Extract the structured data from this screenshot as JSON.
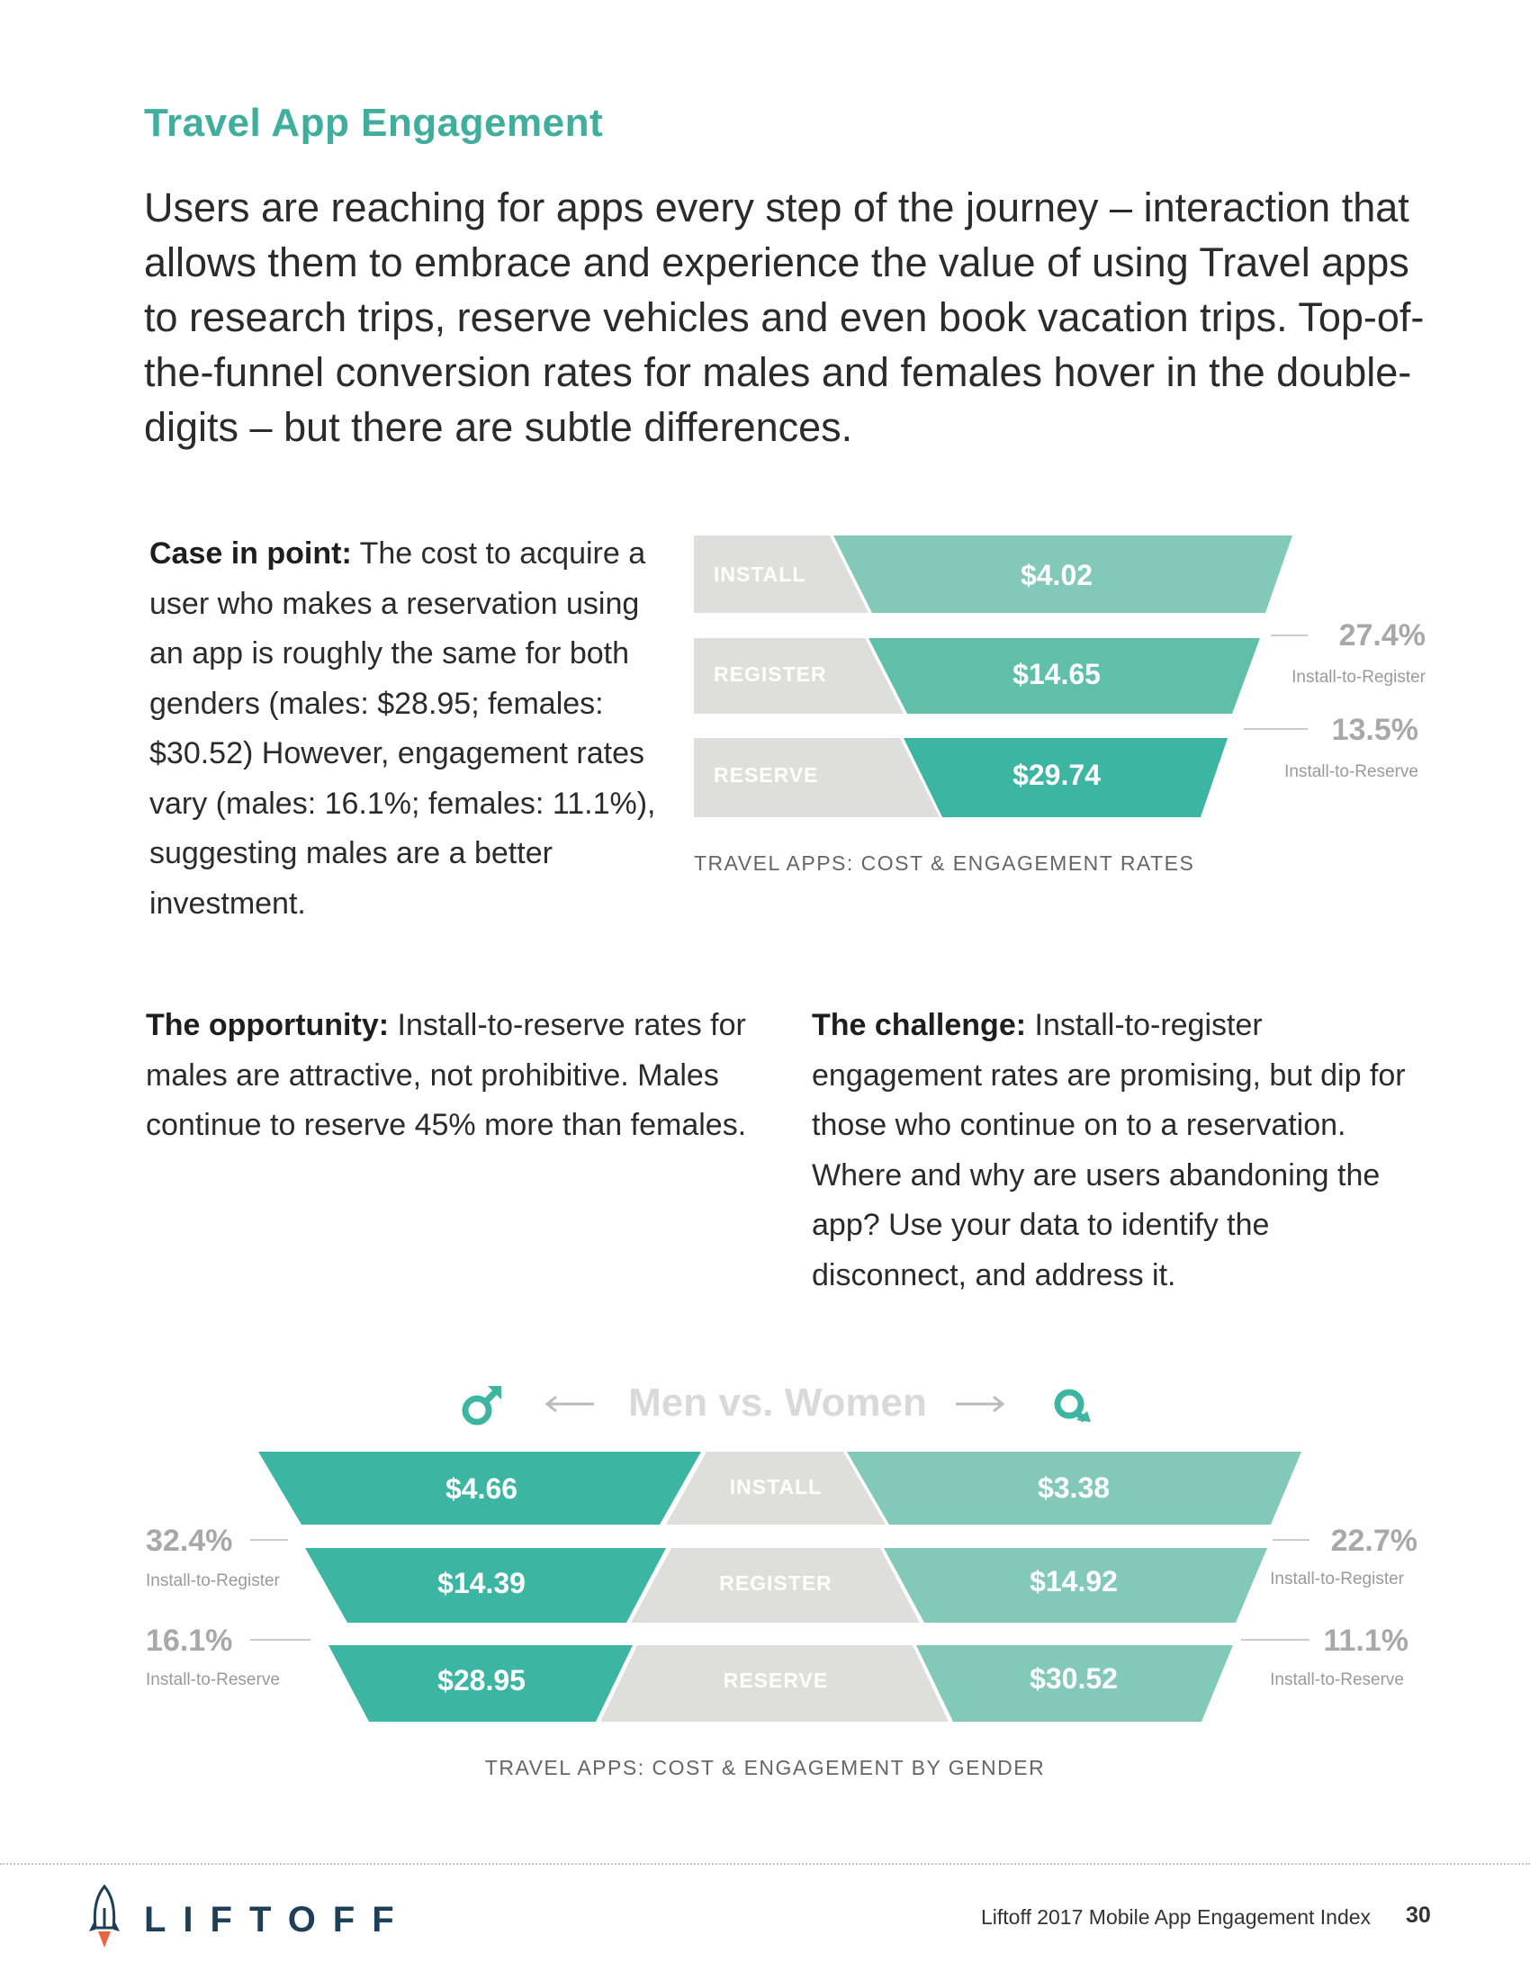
{
  "header": {
    "title": "Travel App Engagement",
    "intro": "Users are reaching for apps every step of the journey – interaction that allows them to embrace and experience the value of using Travel apps to research trips, reserve vehicles and even book vacation trips. Top-of-the-funnel conversion rates for males and females hover in the double-digits – but there are subtle differences."
  },
  "case": {
    "lead": "Case in point:",
    "text": "  The cost to acquire a user who makes a reservation using an app is roughly the same for both genders (males: $28.95; females: $30.52) However, engagement rates vary (males: 16.1%; females: 11.1%), suggesting males are a better investment."
  },
  "opportunity": {
    "lead": "The opportunity:",
    "text": " Install-to-reserve rates for males are attractive, not prohibitive. Males continue to reserve 45% more than females."
  },
  "challenge": {
    "lead": "The challenge:",
    "text": " Install-to-register engagement rates are promising, but dip for those who continue on to a reservation. Where and why are users abandoning the app? Use your data to identify the disconnect, and address it."
  },
  "chart_data": [
    {
      "type": "funnel",
      "title": "TRAVEL APPS: COST & ENGAGEMENT RATES",
      "stages": [
        "INSTALL",
        "REGISTER",
        "RESERVE"
      ],
      "costs": [
        "$4.02",
        "$14.65",
        "$29.74"
      ],
      "rates": [
        {
          "value": "27.4%",
          "label": "Install-to-Register"
        },
        {
          "value": "13.5%",
          "label": "Install-to-Reserve"
        }
      ]
    },
    {
      "type": "funnel",
      "title": "TRAVEL APPS: COST & ENGAGEMENT BY GENDER",
      "heading": "Men vs. Women",
      "stages": [
        "INSTALL",
        "REGISTER",
        "RESERVE"
      ],
      "series": [
        {
          "costs": [
            "$4.66",
            "$14.39",
            "$28.95"
          ],
          "rates": [
            {
              "value": "32.4%",
              "label": "Install-to-Register"
            },
            {
              "value": "16.1%",
              "label": "Install-to-Reserve"
            }
          ]
        },
        {
          "costs": [
            "$3.38",
            "$14.92",
            "$30.52"
          ],
          "rates": [
            {
              "value": "22.7%",
              "label": "Install-to-Register"
            },
            {
              "value": "11.1%",
              "label": "Install-to-Reserve"
            }
          ]
        }
      ]
    }
  ],
  "colors": {
    "accent": "#3fae9d",
    "teal_dark": "#3cb5a3",
    "teal_light": "#82c9b9",
    "gray": "#dededc",
    "navy": "#1d3f57",
    "rocket_flame": "#e8663d"
  },
  "icons": {
    "male": "male-symbol-icon",
    "female": "female-symbol-icon",
    "logo": "rocket-icon"
  },
  "footer": {
    "logo": "LIFTOFF",
    "text": "Liftoff 2017 Mobile App Engagement Index",
    "page": "30"
  }
}
